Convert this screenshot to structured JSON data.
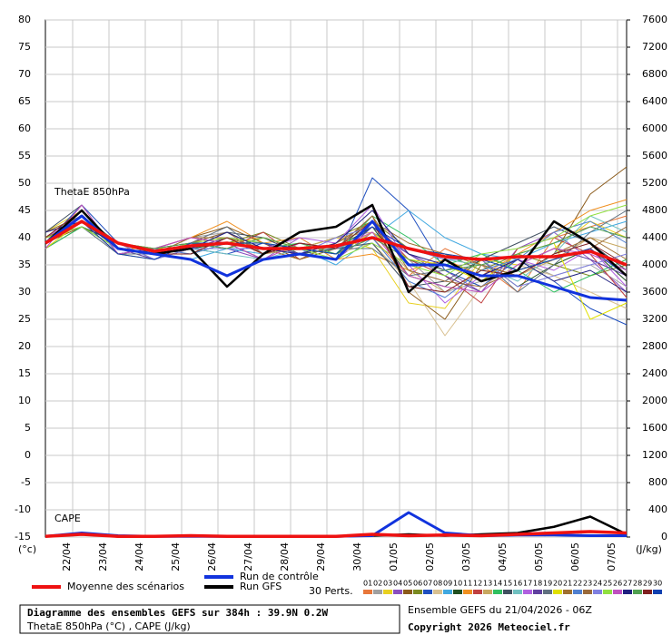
{
  "chart_data": {
    "type": "line",
    "annotations": [
      "ThetaE 850hPa",
      "CAPE"
    ],
    "y_label": "(°c)",
    "y2_label": "(J/kg)",
    "x": [
      0,
      24,
      48,
      72,
      96,
      120,
      144,
      168,
      192,
      216,
      240,
      264,
      288,
      312,
      336,
      360,
      384
    ],
    "xlim": [
      0,
      384
    ],
    "xticks": [
      {
        "value": 18,
        "label": "22/04"
      },
      {
        "value": 42,
        "label": "23/04"
      },
      {
        "value": 66,
        "label": "24/04"
      },
      {
        "value": 90,
        "label": "25/04"
      },
      {
        "value": 114,
        "label": "26/04"
      },
      {
        "value": 138,
        "label": "27/04"
      },
      {
        "value": 162,
        "label": "28/04"
      },
      {
        "value": 186,
        "label": "29/04"
      },
      {
        "value": 210,
        "label": "30/04"
      },
      {
        "value": 234,
        "label": "01/05"
      },
      {
        "value": 258,
        "label": "02/05"
      },
      {
        "value": 282,
        "label": "03/05"
      },
      {
        "value": 306,
        "label": "04/05"
      },
      {
        "value": 330,
        "label": "05/05"
      },
      {
        "value": 354,
        "label": "06/05"
      },
      {
        "value": 378,
        "label": "07/05"
      }
    ],
    "ylim": [
      -15,
      80
    ],
    "yticks": [
      -15,
      -10,
      -5,
      0,
      5,
      10,
      15,
      20,
      25,
      30,
      35,
      40,
      45,
      50,
      55,
      60,
      65,
      70,
      75,
      80
    ],
    "y2lim": [
      0,
      7600
    ],
    "y2ticks": [
      0,
      400,
      800,
      1200,
      1600,
      2000,
      2400,
      2800,
      3200,
      3600,
      4000,
      4400,
      4800,
      5200,
      5600,
      6000,
      6400,
      6800,
      7200,
      7600
    ],
    "grid": true,
    "perts_label": "30 Perts.",
    "series": [
      {
        "name": "Moyenne des scénarios",
        "color": "#ee1111",
        "width": 3.5,
        "values": [
          39,
          43,
          39,
          37.5,
          38.5,
          39,
          38,
          38,
          38.5,
          40,
          38,
          36.5,
          36,
          36.5,
          36.5,
          37.5,
          35
        ],
        "cape_values": [
          10,
          40,
          10,
          10,
          20,
          10,
          10,
          10,
          10,
          40,
          20,
          30,
          20,
          40,
          60,
          80,
          60
        ]
      },
      {
        "name": "Run de contrôle",
        "color": "#1133dd",
        "width": 3,
        "values": [
          39,
          44,
          38,
          37,
          36,
          33,
          36,
          37,
          36,
          43,
          35,
          35,
          33,
          33,
          31,
          29,
          28.5
        ],
        "cape_values": [
          10,
          60,
          20,
          10,
          10,
          10,
          10,
          10,
          10,
          20,
          360,
          60,
          20,
          30,
          30,
          20,
          20
        ]
      },
      {
        "name": "Run GFS",
        "color": "#000000",
        "width": 2.5,
        "values": [
          39,
          45,
          38,
          37,
          38,
          31,
          37,
          41,
          42,
          46,
          30,
          36,
          32,
          34,
          43,
          39,
          33
        ],
        "cape_values": [
          10,
          40,
          10,
          10,
          20,
          10,
          10,
          10,
          10,
          20,
          40,
          20,
          40,
          60,
          150,
          300,
          40
        ]
      }
    ],
    "perturbations": [
      {
        "name": "01",
        "color": "#e8773a",
        "values": [
          40,
          42,
          38,
          37,
          39,
          40,
          37,
          39,
          37,
          40,
          33,
          38,
          35,
          30,
          40,
          42,
          44
        ]
      },
      {
        "name": "02",
        "color": "#a0a0a0",
        "values": [
          39,
          44,
          39,
          38,
          40,
          41,
          38,
          37,
          39,
          42,
          36,
          30,
          32,
          36,
          33,
          35,
          31
        ]
      },
      {
        "name": "03",
        "color": "#e8d020",
        "values": [
          41,
          45,
          37,
          36,
          38,
          39,
          40,
          38,
          40,
          38,
          28,
          27,
          36,
          35,
          38,
          43,
          40
        ]
      },
      {
        "name": "04",
        "color": "#8a4fc0",
        "values": [
          38,
          43,
          38,
          37,
          39,
          38,
          36,
          40,
          36,
          41,
          37,
          34,
          30,
          38,
          41,
          36,
          30
        ]
      },
      {
        "name": "05",
        "color": "#8b5a1a",
        "values": [
          39,
          42,
          39,
          38,
          40,
          42,
          39,
          36,
          38,
          44,
          30,
          25,
          35,
          33,
          37,
          48,
          53
        ]
      },
      {
        "name": "06",
        "color": "#7a8a20",
        "values": [
          40,
          44,
          38,
          37,
          37,
          39,
          41,
          38,
          40,
          43,
          38,
          37,
          34,
          37,
          35,
          33,
          35
        ]
      },
      {
        "name": "07",
        "color": "#2050c0",
        "values": [
          39,
          46,
          39,
          36,
          38,
          37,
          39,
          37,
          36,
          51,
          45,
          34,
          31,
          36,
          32,
          27,
          24
        ]
      },
      {
        "name": "08",
        "color": "#d8c090",
        "values": [
          40,
          43,
          37,
          38,
          39,
          40,
          38,
          39,
          37,
          39,
          32,
          22,
          31,
          35,
          33,
          30,
          27
        ]
      },
      {
        "name": "09",
        "color": "#40a8e0",
        "values": [
          41,
          44,
          38,
          37,
          36,
          38,
          37,
          38,
          35,
          40,
          45,
          40,
          37,
          36,
          39,
          41,
          43
        ]
      },
      {
        "name": "10",
        "color": "#205020",
        "values": [
          38,
          42,
          39,
          37,
          38,
          39,
          36,
          37,
          38,
          42,
          33,
          31,
          36,
          31,
          35,
          38,
          32
        ]
      },
      {
        "name": "11",
        "color": "#f09020",
        "values": [
          40,
          45,
          38,
          38,
          40,
          43,
          39,
          40,
          36,
          37,
          34,
          36,
          33,
          37,
          41,
          45,
          47
        ]
      },
      {
        "name": "12",
        "color": "#c04040",
        "values": [
          39,
          43,
          37,
          37,
          39,
          38,
          41,
          36,
          39,
          43,
          36,
          33,
          28,
          38,
          40,
          37,
          29
        ]
      },
      {
        "name": "13",
        "color": "#c8a860",
        "values": [
          40,
          44,
          39,
          36,
          38,
          40,
          37,
          38,
          40,
          41,
          34,
          30,
          34,
          33,
          36,
          40,
          38
        ]
      },
      {
        "name": "14",
        "color": "#30c060",
        "values": [
          38,
          42,
          38,
          37,
          37,
          39,
          38,
          39,
          37,
          44,
          40,
          35,
          37,
          34,
          30,
          33,
          36
        ]
      },
      {
        "name": "15",
        "color": "#405060",
        "values": [
          41,
          46,
          37,
          38,
          39,
          41,
          40,
          37,
          38,
          39,
          31,
          32,
          36,
          39,
          42,
          39,
          34
        ]
      },
      {
        "name": "16",
        "color": "#70c0c0",
        "values": [
          39,
          43,
          38,
          37,
          38,
          37,
          36,
          38,
          38,
          40,
          38,
          36,
          35,
          32,
          37,
          44,
          41
        ]
      },
      {
        "name": "17",
        "color": "#b060e0",
        "values": [
          40,
          44,
          39,
          38,
          40,
          39,
          38,
          40,
          39,
          46,
          35,
          28,
          33,
          36,
          34,
          38,
          31
        ]
      },
      {
        "name": "18",
        "color": "#6040a0",
        "values": [
          39,
          45,
          38,
          36,
          38,
          40,
          39,
          37,
          36,
          42,
          37,
          33,
          30,
          35,
          38,
          36,
          33
        ]
      },
      {
        "name": "19",
        "color": "#607080",
        "values": [
          40,
          42,
          37,
          37,
          39,
          42,
          37,
          39,
          38,
          38,
          33,
          34,
          36,
          30,
          35,
          41,
          45
        ]
      },
      {
        "name": "20",
        "color": "#e0e000",
        "values": [
          38,
          43,
          39,
          38,
          38,
          38,
          40,
          38,
          37,
          41,
          36,
          35,
          32,
          37,
          39,
          25,
          28
        ]
      },
      {
        "name": "21",
        "color": "#a07030",
        "values": [
          41,
          44,
          38,
          37,
          40,
          40,
          38,
          36,
          39,
          43,
          39,
          37,
          35,
          33,
          37,
          40,
          36
        ]
      },
      {
        "name": "22",
        "color": "#5080d0",
        "values": [
          39,
          45,
          37,
          38,
          37,
          39,
          39,
          38,
          37,
          40,
          32,
          29,
          34,
          36,
          41,
          43,
          39
        ]
      },
      {
        "name": "23",
        "color": "#9a6a3a",
        "values": [
          40,
          43,
          38,
          37,
          39,
          41,
          37,
          39,
          38,
          44,
          34,
          32,
          31,
          34,
          36,
          38,
          42
        ]
      },
      {
        "name": "24",
        "color": "#8080e0",
        "values": [
          39,
          44,
          39,
          36,
          38,
          38,
          38,
          37,
          40,
          42,
          38,
          36,
          36,
          31,
          33,
          35,
          37
        ]
      },
      {
        "name": "25",
        "color": "#90e040",
        "values": [
          40,
          42,
          38,
          37,
          39,
          40,
          39,
          38,
          36,
          39,
          35,
          33,
          37,
          38,
          40,
          44,
          46
        ]
      },
      {
        "name": "26",
        "color": "#c050c0",
        "values": [
          38,
          46,
          37,
          38,
          40,
          39,
          36,
          39,
          38,
          41,
          33,
          31,
          30,
          35,
          38,
          37,
          34
        ]
      },
      {
        "name": "27",
        "color": "#202080",
        "values": [
          41,
          43,
          38,
          37,
          38,
          41,
          38,
          37,
          39,
          45,
          37,
          35,
          33,
          36,
          32,
          34,
          30
        ]
      },
      {
        "name": "28",
        "color": "#50a050",
        "values": [
          39,
          44,
          39,
          38,
          39,
          38,
          40,
          38,
          37,
          40,
          36,
          34,
          35,
          37,
          39,
          42,
          40
        ]
      },
      {
        "name": "29",
        "color": "#802020",
        "values": [
          40,
          45,
          38,
          37,
          37,
          40,
          37,
          39,
          38,
          43,
          31,
          30,
          34,
          33,
          37,
          39,
          35
        ]
      },
      {
        "name": "30",
        "color": "#1040b0",
        "values": [
          39,
          43,
          37,
          36,
          39,
          39,
          39,
          38,
          37,
          42,
          38,
          37,
          36,
          34,
          36,
          38,
          33
        ]
      }
    ]
  },
  "footer": {
    "title": "Diagramme des ensembles GEFS sur 384h : 39.9N 0.2W",
    "subtitle": "ThetaE 850hPa (°C) , CAPE (J/kg)",
    "run": "Ensemble GEFS du 21/04/2026 - 06Z",
    "copyright": "Copyright 2026 Meteociel.fr"
  }
}
